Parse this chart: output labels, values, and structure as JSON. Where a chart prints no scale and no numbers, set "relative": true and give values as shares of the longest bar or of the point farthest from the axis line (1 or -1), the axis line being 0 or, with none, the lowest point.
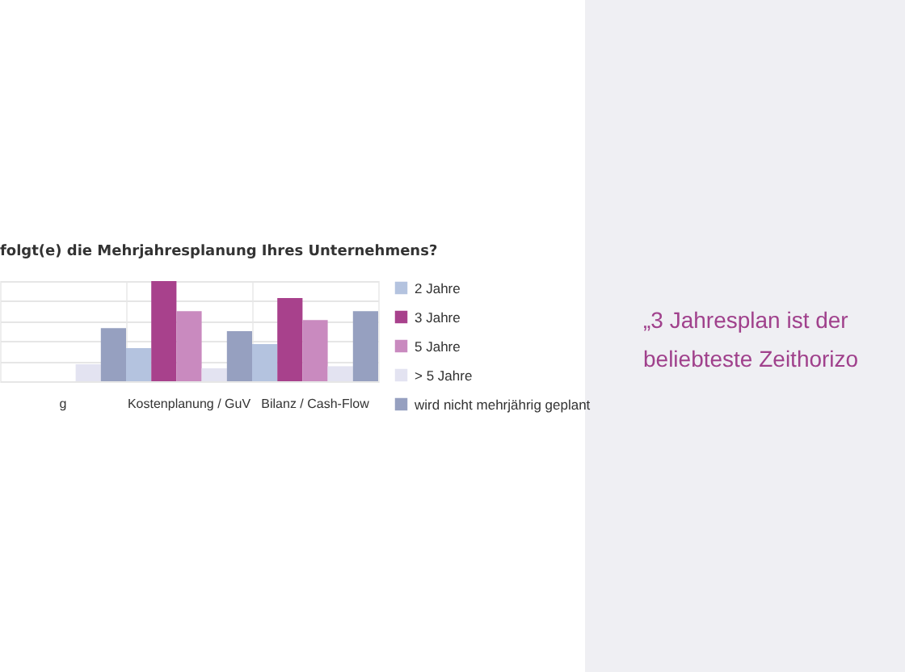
{
  "chart_data": {
    "type": "bar",
    "title": "folgt(e) die Mehrjahresplanung Ihres Unternehmens?",
    "categories": [
      "g",
      "Kostenplanung / GuV",
      "Bilanz / Cash-Flow"
    ],
    "relative": true,
    "grid": "y",
    "legend": "right",
    "series": [
      {
        "name": "2 Jahre",
        "color": "#b4c3df",
        "values": [
          null,
          0.33,
          0.37
        ]
      },
      {
        "name": "3 Jahre",
        "color": "#a8418c",
        "values": [
          null,
          1,
          0.83
        ]
      },
      {
        "name": "5 Jahre",
        "color": "#c98abf",
        "values": [
          null,
          0.7,
          0.61
        ]
      },
      {
        "name": "> 5 Jahre",
        "color": "#e3e3f1",
        "values": [
          0.17,
          0.13,
          0.15
        ]
      },
      {
        "name": "wird nicht mehrjährig geplant",
        "color": "#96a0c0",
        "values": [
          0.53,
          0.5,
          0.7
        ]
      }
    ],
    "annotations": [
      "„3 Jahresplan ist der beliebteste Zeithorizo"
    ]
  }
}
